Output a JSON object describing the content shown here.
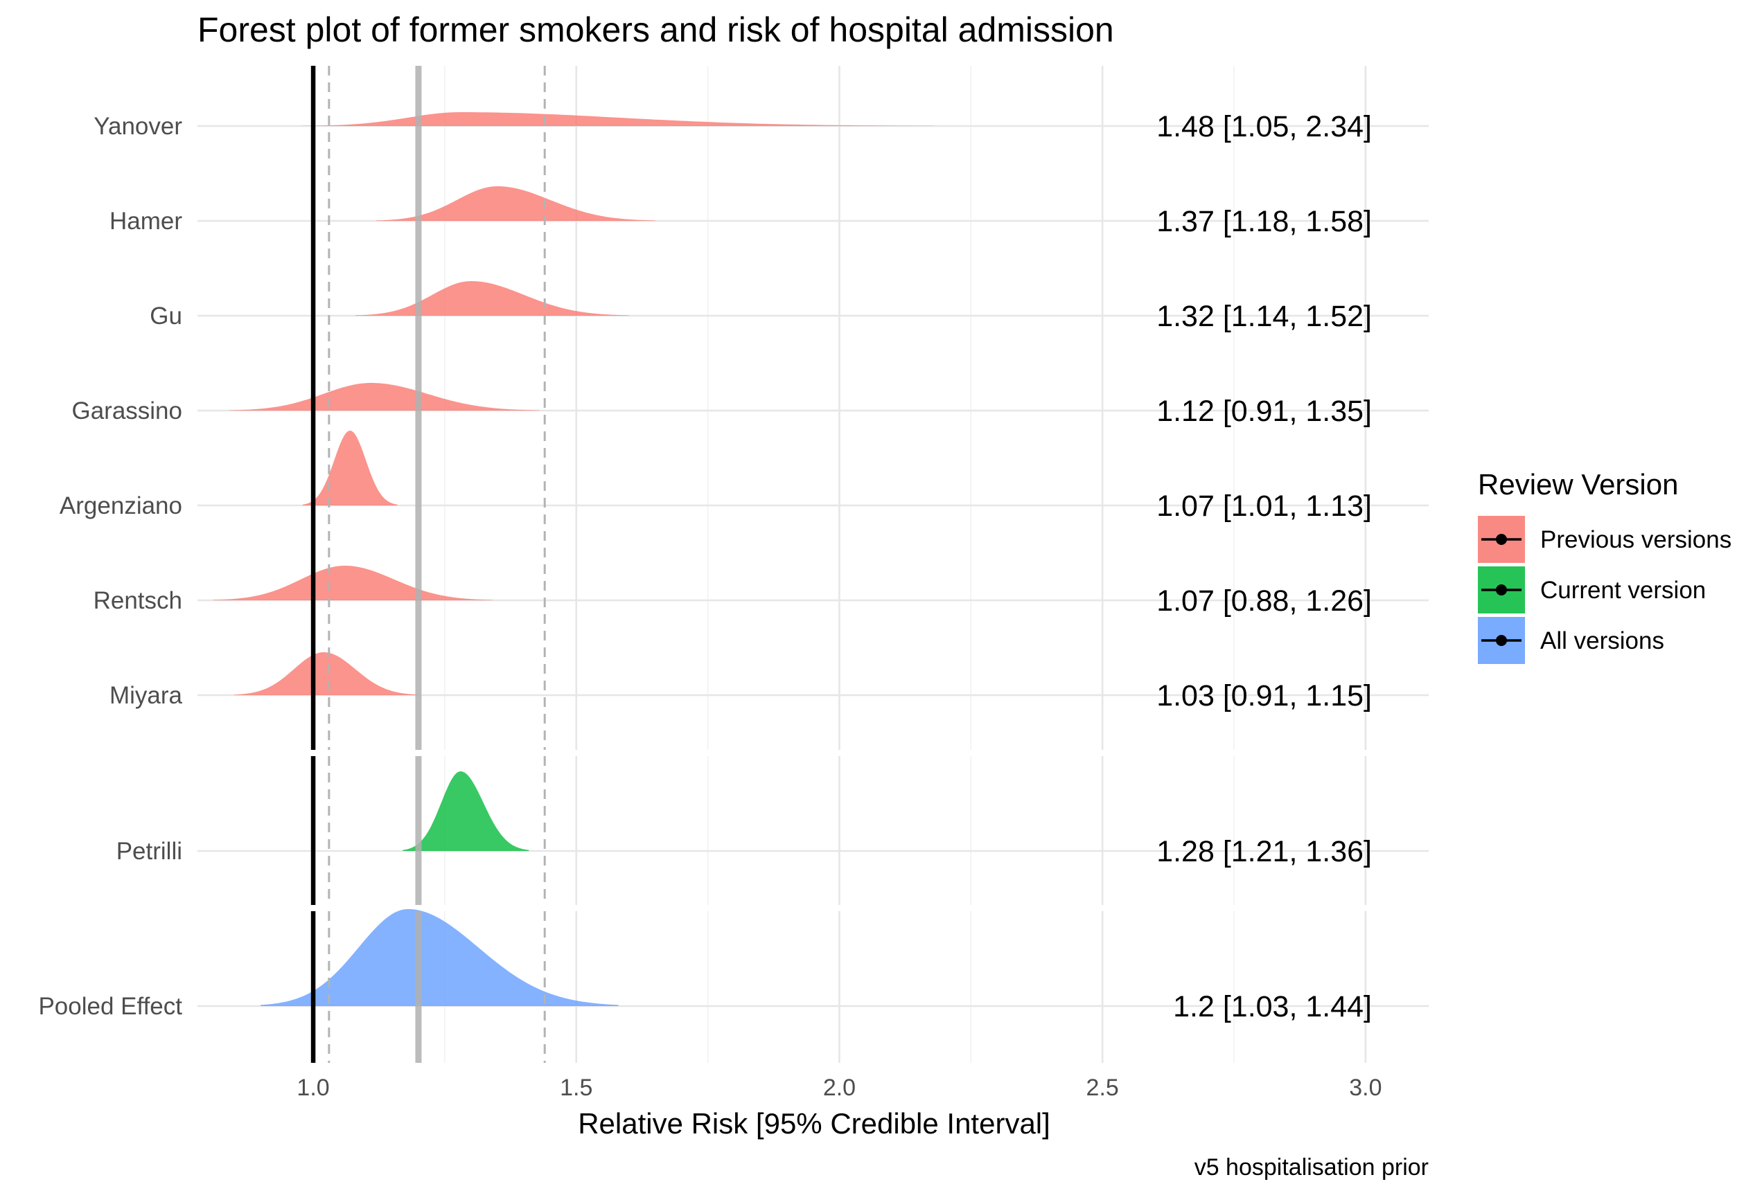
{
  "chart_data": {
    "type": "forest_density",
    "title": "Forest plot of former smokers and risk of hospital admission",
    "xlabel": "Relative Risk [95% Credible Interval]",
    "caption": "v5 hospitalisation prior",
    "xlim": [
      0.78,
      3.12
    ],
    "xticks": [
      "1.0",
      "1.5",
      "2.0",
      "2.5",
      "3.0"
    ],
    "grid": true,
    "reference_line": 1.0,
    "pooled_estimate_line": 1.2,
    "pooled_interval_lines": [
      1.03,
      1.44
    ],
    "legend": {
      "title": "Review Version",
      "position": "right",
      "entries": [
        {
          "label": "Previous versions",
          "color": "#F8766D"
        },
        {
          "label": "Current version",
          "color": "#00BA38"
        },
        {
          "label": "All versions",
          "color": "#619CFF"
        }
      ]
    },
    "studies": [
      {
        "name": "Yanover",
        "group": "Previous versions",
        "estimate": 1.48,
        "lower": 1.05,
        "upper": 2.34,
        "label": "1.48 [1.05, 2.34]",
        "density_mode": 1.28,
        "density_range": [
          0.98,
          2.18
        ]
      },
      {
        "name": "Hamer",
        "group": "Previous versions",
        "estimate": 1.37,
        "lower": 1.18,
        "upper": 1.58,
        "label": "1.37 [1.18, 1.58]",
        "density_mode": 1.35,
        "density_range": [
          1.12,
          1.65
        ]
      },
      {
        "name": "Gu",
        "group": "Previous versions",
        "estimate": 1.32,
        "lower": 1.14,
        "upper": 1.52,
        "label": "1.32 [1.14, 1.52]",
        "density_mode": 1.3,
        "density_range": [
          1.08,
          1.6
        ]
      },
      {
        "name": "Garassino",
        "group": "Previous versions",
        "estimate": 1.12,
        "lower": 0.91,
        "upper": 1.35,
        "label": "1.12 [0.91, 1.35]",
        "density_mode": 1.11,
        "density_range": [
          0.84,
          1.43
        ]
      },
      {
        "name": "Argenziano",
        "group": "Previous versions",
        "estimate": 1.07,
        "lower": 1.01,
        "upper": 1.13,
        "label": "1.07 [1.01, 1.13]",
        "density_mode": 1.07,
        "density_range": [
          0.98,
          1.16
        ]
      },
      {
        "name": "Rentsch",
        "group": "Previous versions",
        "estimate": 1.07,
        "lower": 0.88,
        "upper": 1.26,
        "label": "1.07 [0.88, 1.26]",
        "density_mode": 1.06,
        "density_range": [
          0.81,
          1.34
        ]
      },
      {
        "name": "Miyara",
        "group": "Previous versions",
        "estimate": 1.03,
        "lower": 0.91,
        "upper": 1.15,
        "label": "1.03 [0.91, 1.15]",
        "density_mode": 1.02,
        "density_range": [
          0.85,
          1.2
        ]
      },
      {
        "name": "Petrilli",
        "group": "Current version",
        "estimate": 1.28,
        "lower": 1.21,
        "upper": 1.36,
        "label": "1.28 [1.21, 1.36]",
        "density_mode": 1.28,
        "density_range": [
          1.17,
          1.41
        ]
      },
      {
        "name": "Pooled Effect",
        "group": "All versions",
        "estimate": 1.2,
        "lower": 1.03,
        "upper": 1.44,
        "label": "1.2 [1.03, 1.44]",
        "density_mode": 1.18,
        "density_range": [
          0.9,
          1.58
        ]
      }
    ]
  }
}
